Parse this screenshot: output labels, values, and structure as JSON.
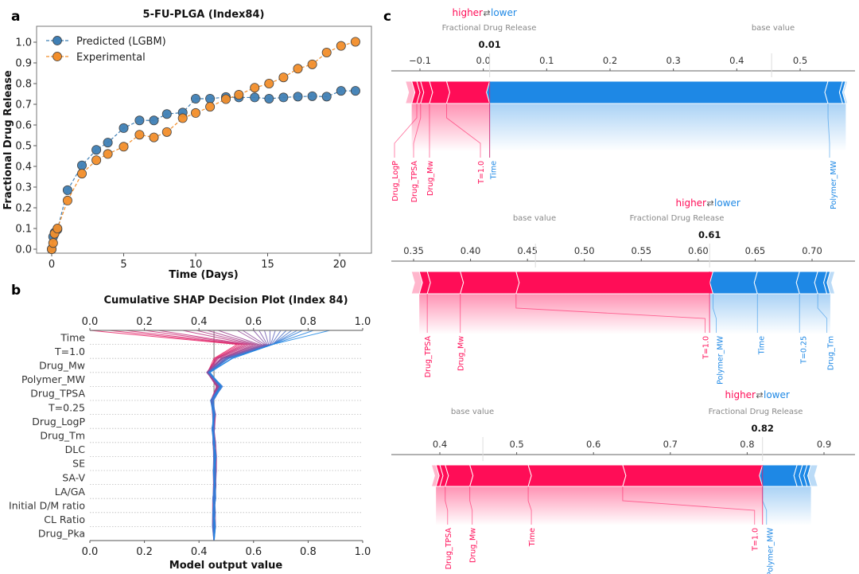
{
  "panels": {
    "a": "a",
    "b": "b",
    "c": "c"
  },
  "colors": {
    "predicted": "#3f7fb5",
    "experimental": "#f28e2b",
    "shap_red": "#ff0d57",
    "shap_blue": "#1e88e5"
  },
  "chart_data": [
    {
      "id": "release",
      "type": "line",
      "title": "5-FU-PLGA (Index84)",
      "xlabel": "Time (Days)",
      "ylabel": "Fractional Drug Release",
      "xlim": [
        -1.1,
        22.3
      ],
      "ylim": [
        -0.02,
        1.08
      ],
      "xticks": [
        0,
        5,
        10,
        15,
        20
      ],
      "yticks": [
        0.0,
        0.1,
        0.2,
        0.3,
        0.4,
        0.5,
        0.6,
        0.7,
        0.8,
        0.9,
        1.0
      ],
      "legend_position": "top-left",
      "series": [
        {
          "name": "Predicted (LGBM)",
          "color": "#3f7fb5",
          "x": [
            0,
            0.1,
            0.2,
            0.4,
            1.1,
            2.1,
            3.1,
            3.9,
            5.0,
            6.1,
            7.1,
            8.0,
            9.1,
            10.0,
            11.0,
            12.1,
            13.0,
            14.1,
            15.1,
            16.1,
            17.1,
            18.1,
            19.1,
            20.1,
            21.1
          ],
          "y": [
            0.0,
            0.06,
            0.08,
            0.095,
            0.285,
            0.405,
            0.48,
            0.515,
            0.585,
            0.622,
            0.622,
            0.653,
            0.66,
            0.727,
            0.727,
            0.735,
            0.733,
            0.733,
            0.727,
            0.733,
            0.737,
            0.739,
            0.737,
            0.765,
            0.765
          ]
        },
        {
          "name": "Experimental",
          "color": "#f28e2b",
          "x": [
            0,
            0.1,
            0.2,
            0.4,
            1.1,
            2.1,
            3.1,
            3.9,
            5.0,
            6.1,
            7.1,
            8.0,
            9.1,
            10.0,
            11.0,
            12.1,
            13.0,
            14.1,
            15.1,
            16.1,
            17.1,
            18.1,
            19.1,
            20.1,
            21.1
          ],
          "y": [
            0.0,
            0.03,
            0.075,
            0.1,
            0.235,
            0.365,
            0.43,
            0.46,
            0.495,
            0.553,
            0.54,
            0.566,
            0.633,
            0.658,
            0.688,
            0.725,
            0.746,
            0.78,
            0.8,
            0.83,
            0.872,
            0.893,
            0.95,
            0.982,
            1.002
          ]
        }
      ]
    },
    {
      "id": "decision",
      "type": "line",
      "title": "Cumulative SHAP Decision Plot (Index 84)",
      "xlabel": "Model output value",
      "xlim": [
        0.0,
        1.0
      ],
      "xticks": [
        0.0,
        0.2,
        0.4,
        0.6,
        0.8,
        1.0
      ],
      "base_value": 0.455,
      "features": [
        "Time",
        "T=1.0",
        "Drug_Mw",
        "Polymer_MW",
        "Drug_TPSA",
        "T=0.25",
        "Drug_LogP",
        "Drug_Tm",
        "DLC",
        "SE",
        "SA-V",
        "LA/GA",
        "Initial D/M ratio",
        "CL Ratio",
        "Drug_Pka"
      ],
      "final_outputs": [
        0.0,
        0.07,
        0.13,
        0.2,
        0.25,
        0.34,
        0.39,
        0.43,
        0.47,
        0.54,
        0.56,
        0.6,
        0.62,
        0.64,
        0.66,
        0.68,
        0.7,
        0.72,
        0.74,
        0.76,
        0.78,
        0.82,
        0.88
      ],
      "time_row_outputs": [
        0.54,
        0.55,
        0.56,
        0.57,
        0.58,
        0.59,
        0.6,
        0.61,
        0.62,
        0.63,
        0.64,
        0.645,
        0.65,
        0.655,
        0.66,
        0.663,
        0.666,
        0.67,
        0.67,
        0.67,
        0.67,
        0.67,
        0.67
      ]
    },
    {
      "id": "force1",
      "type": "bar",
      "title": "Fractional Drug Release",
      "higher_label": "higher",
      "lower_label": "lower",
      "output_label": "Fractional Drug Release",
      "base_label": "base value",
      "output_value": 0.01,
      "output_text": "0.01",
      "base_value": 0.455,
      "xlim": [
        -0.14,
        0.58
      ],
      "xticks": [
        -0.1,
        0.0,
        0.1,
        0.2,
        0.3,
        0.4,
        0.5
      ],
      "xtick_labels": [
        "−0.1",
        "0.0",
        "0.1",
        "0.2",
        "0.3",
        "0.4",
        "0.5"
      ],
      "red_bounds": [
        -0.123,
        -0.113,
        -0.105,
        -0.099,
        -0.085,
        -0.058,
        0.01
      ],
      "blue_bounds": [
        0.01,
        0.544,
        0.567,
        0.572,
        0.575
      ],
      "red_labels": [
        {
          "name": "Drug_LogP",
          "at": -0.105
        },
        {
          "name": "Drug_TPSA",
          "at": -0.099
        },
        {
          "name": "Drug_Mw",
          "at": -0.085
        },
        {
          "name": "T=1.0",
          "at": -0.058
        }
      ],
      "blue_labels": [
        {
          "name": "Time",
          "at": 0.01
        },
        {
          "name": "Polymer_MW",
          "at": 0.544
        }
      ]
    },
    {
      "id": "force2",
      "type": "bar",
      "higher_label": "higher",
      "lower_label": "lower",
      "output_label": "Fractional Drug Release",
      "base_label": "base value",
      "output_value": 0.61,
      "output_text": "0.61",
      "base_value": 0.457,
      "xlim": [
        0.33,
        0.74
      ],
      "xticks": [
        0.35,
        0.4,
        0.45,
        0.5,
        0.55,
        0.6,
        0.65,
        0.7
      ],
      "xtick_labels": [
        "0.35",
        "0.40",
        "0.45",
        "0.50",
        "0.55",
        "0.60",
        "0.65",
        "0.70"
      ],
      "red_bounds": [
        0.348,
        0.355,
        0.362,
        0.391,
        0.44,
        0.613
      ],
      "blue_bounds": [
        0.613,
        0.652,
        0.689,
        0.705,
        0.713,
        0.716,
        0.72
      ],
      "red_labels": [
        {
          "name": "Drug_TPSA",
          "at": 0.362
        },
        {
          "name": "Drug_Mw",
          "at": 0.391
        },
        {
          "name": "T=1.0",
          "at": 0.44
        }
      ],
      "blue_labels": [
        {
          "name": "Polymer_MW",
          "at": 0.613
        },
        {
          "name": "Time",
          "at": 0.652
        },
        {
          "name": "T=0.25",
          "at": 0.689
        },
        {
          "name": "Drug_Tm",
          "at": 0.705
        }
      ]
    },
    {
      "id": "force3",
      "type": "bar",
      "higher_label": "higher",
      "lower_label": "lower",
      "output_label": "Fractional Drug Release",
      "base_label": "base value",
      "output_value": 0.82,
      "output_text": "0.82",
      "base_value": 0.456,
      "xlim": [
        0.34,
        0.95
      ],
      "xticks": [
        0.4,
        0.5,
        0.6,
        0.7,
        0.8,
        0.9
      ],
      "xtick_labels": [
        "0.4",
        "0.5",
        "0.6",
        "0.7",
        "0.8",
        "0.9"
      ],
      "red_bounds": [
        0.389,
        0.395,
        0.4,
        0.407,
        0.439,
        0.515,
        0.638,
        0.82
      ],
      "blue_bounds": [
        0.82,
        0.865,
        0.872,
        0.878,
        0.883,
        0.892
      ],
      "red_labels": [
        {
          "name": "Drug_TPSA",
          "at": 0.407
        },
        {
          "name": "Drug_Mw",
          "at": 0.439
        },
        {
          "name": "Time",
          "at": 0.515
        },
        {
          "name": "T=1.0",
          "at": 0.638
        }
      ],
      "blue_labels": [
        {
          "name": "Polymer_MW",
          "at": 0.82
        }
      ]
    }
  ]
}
